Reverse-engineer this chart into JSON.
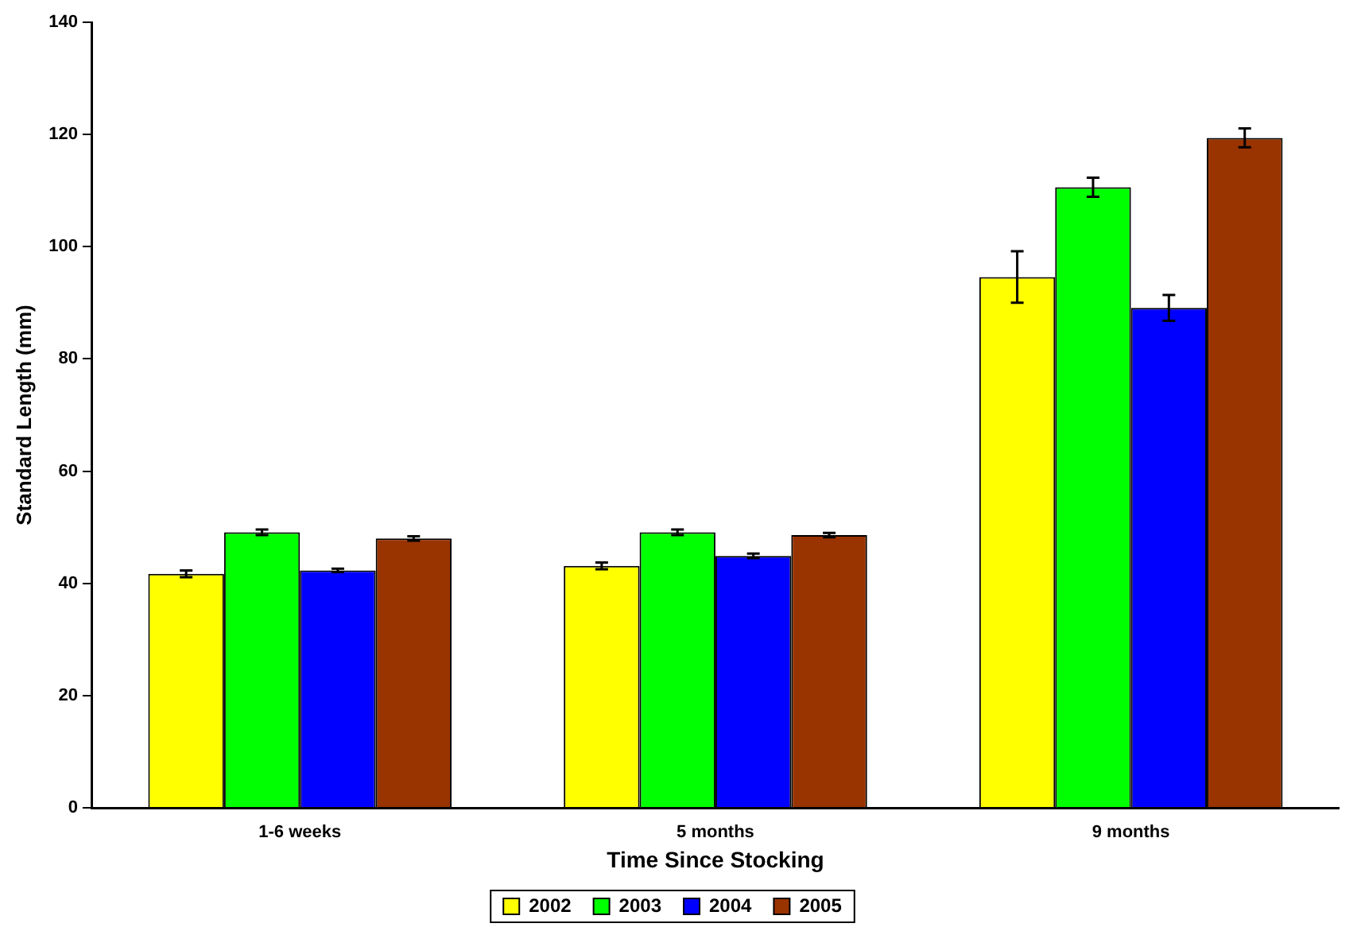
{
  "chart_data": {
    "type": "bar",
    "xlabel": "Time Since Stocking",
    "ylabel": "Standard Length (mm)",
    "categories": [
      "1-6 weeks",
      "5 months",
      "9 months"
    ],
    "series": [
      {
        "name": "2002",
        "color": "#ffff00",
        "values": [
          41.7,
          43.1,
          94.6
        ],
        "errors": [
          0.6,
          0.6,
          4.6
        ]
      },
      {
        "name": "2003",
        "color": "#00ff00",
        "values": [
          49.1,
          49.1,
          110.6
        ],
        "errors": [
          0.5,
          0.5,
          1.7
        ]
      },
      {
        "name": "2004",
        "color": "#0000ff",
        "values": [
          42.3,
          44.9,
          89.1
        ],
        "errors": [
          0.3,
          0.4,
          2.3
        ]
      },
      {
        "name": "2005",
        "color": "#993300",
        "values": [
          48.0,
          48.6,
          119.4
        ],
        "errors": [
          0.4,
          0.4,
          1.7
        ]
      }
    ],
    "ylim": [
      0,
      140
    ],
    "yticks": [
      0,
      20,
      40,
      60,
      80,
      100,
      120,
      140
    ],
    "grid": false,
    "legend": "bottom"
  }
}
